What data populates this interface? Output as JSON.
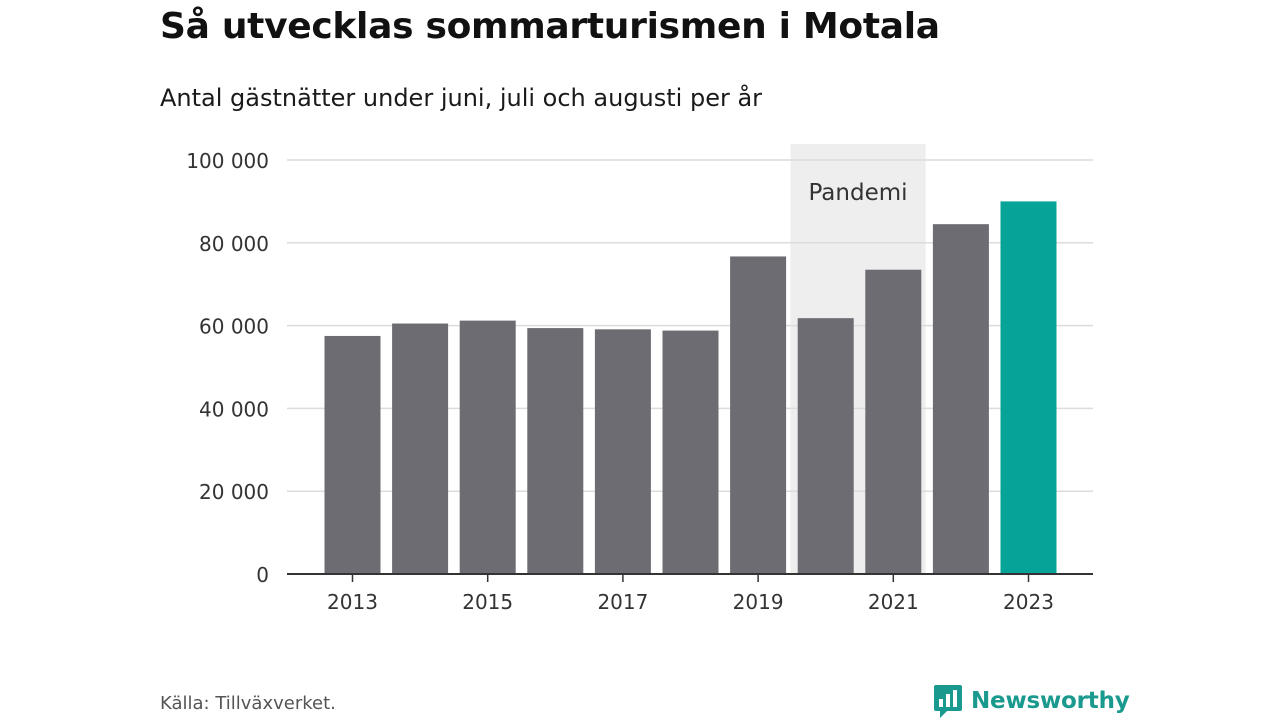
{
  "header": {
    "title": "Så utvecklas sommarturismen i Motala",
    "subtitle": "Antal gästnätter under juni, juli och augusti per år"
  },
  "footer": {
    "source": "Källa: Tillväxverket.",
    "brand": "Newsworthy"
  },
  "colors": {
    "bar": "#6d6c72",
    "highlight": "#06a498",
    "shading": "#eeeeee",
    "grid": "#dcdcdc",
    "axis": "#333333",
    "brand": "#1a9a8e"
  },
  "chart_data": {
    "type": "bar",
    "title": "",
    "xlabel": "",
    "ylabel": "",
    "categories": [
      "2013",
      "2014",
      "2015",
      "2016",
      "2017",
      "2018",
      "2019",
      "2020",
      "2021",
      "2022",
      "2023"
    ],
    "values": [
      57500,
      60500,
      61200,
      59400,
      59100,
      58800,
      76700,
      61800,
      73500,
      84500,
      90000
    ],
    "highlight_category": "2023",
    "x_tick_labels": [
      "2013",
      "2015",
      "2017",
      "2019",
      "2021",
      "2023"
    ],
    "ylim": [
      0,
      100000
    ],
    "y_ticks": [
      0,
      20000,
      40000,
      60000,
      80000,
      100000
    ],
    "y_tick_labels": [
      "0",
      "20 000",
      "40 000",
      "60 000",
      "80 000",
      "100 000"
    ],
    "grid": true,
    "legend": "none",
    "shaded_region": {
      "label": "Pandemi",
      "from": "2020",
      "to": "2021"
    }
  }
}
